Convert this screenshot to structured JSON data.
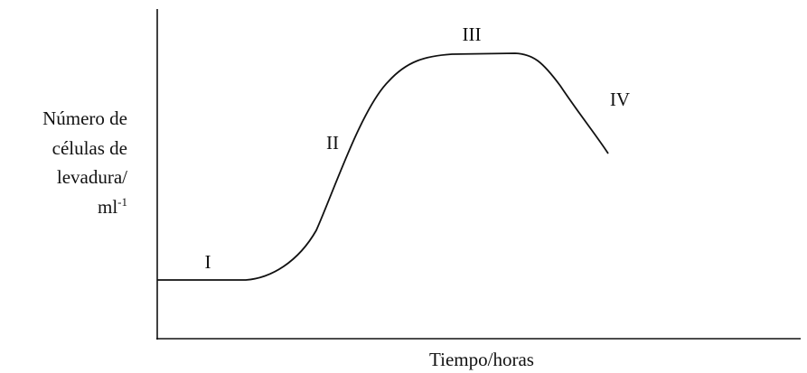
{
  "y_axis_label": {
    "lines": [
      "Número de",
      "células de",
      "levadura/"
    ],
    "last_line": {
      "base": "ml",
      "sup": "-1"
    }
  },
  "x_axis_label": "Tiempo/horas",
  "phases": [
    "I",
    "II",
    "III",
    "IV"
  ]
}
